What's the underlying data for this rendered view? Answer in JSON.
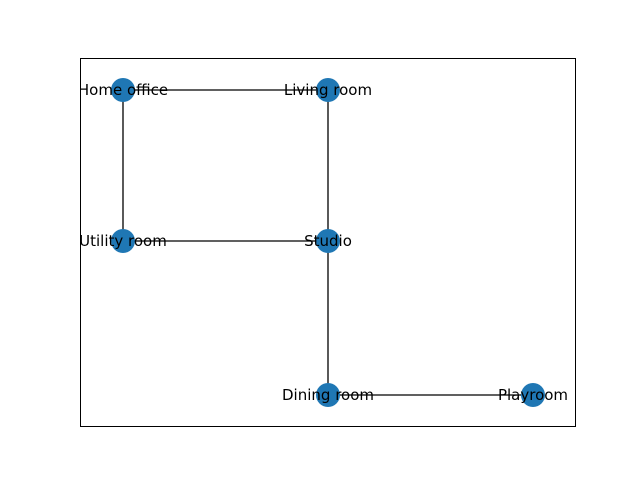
{
  "graph": {
    "node_color": "#1f77b4",
    "edge_color": "#000000",
    "nodes": [
      {
        "id": "home_office",
        "label": "Home office"
      },
      {
        "id": "living_room",
        "label": "Living room"
      },
      {
        "id": "utility_room",
        "label": "Utility room"
      },
      {
        "id": "studio",
        "label": "Studio"
      },
      {
        "id": "dining_room",
        "label": "Dining room"
      },
      {
        "id": "playroom",
        "label": "Playroom"
      }
    ],
    "edges": [
      {
        "source": "home_office",
        "target": "living_room"
      },
      {
        "source": "home_office",
        "target": "utility_room"
      },
      {
        "source": "living_room",
        "target": "studio"
      },
      {
        "source": "utility_room",
        "target": "studio"
      },
      {
        "source": "studio",
        "target": "dining_room"
      },
      {
        "source": "dining_room",
        "target": "playroom"
      }
    ]
  }
}
